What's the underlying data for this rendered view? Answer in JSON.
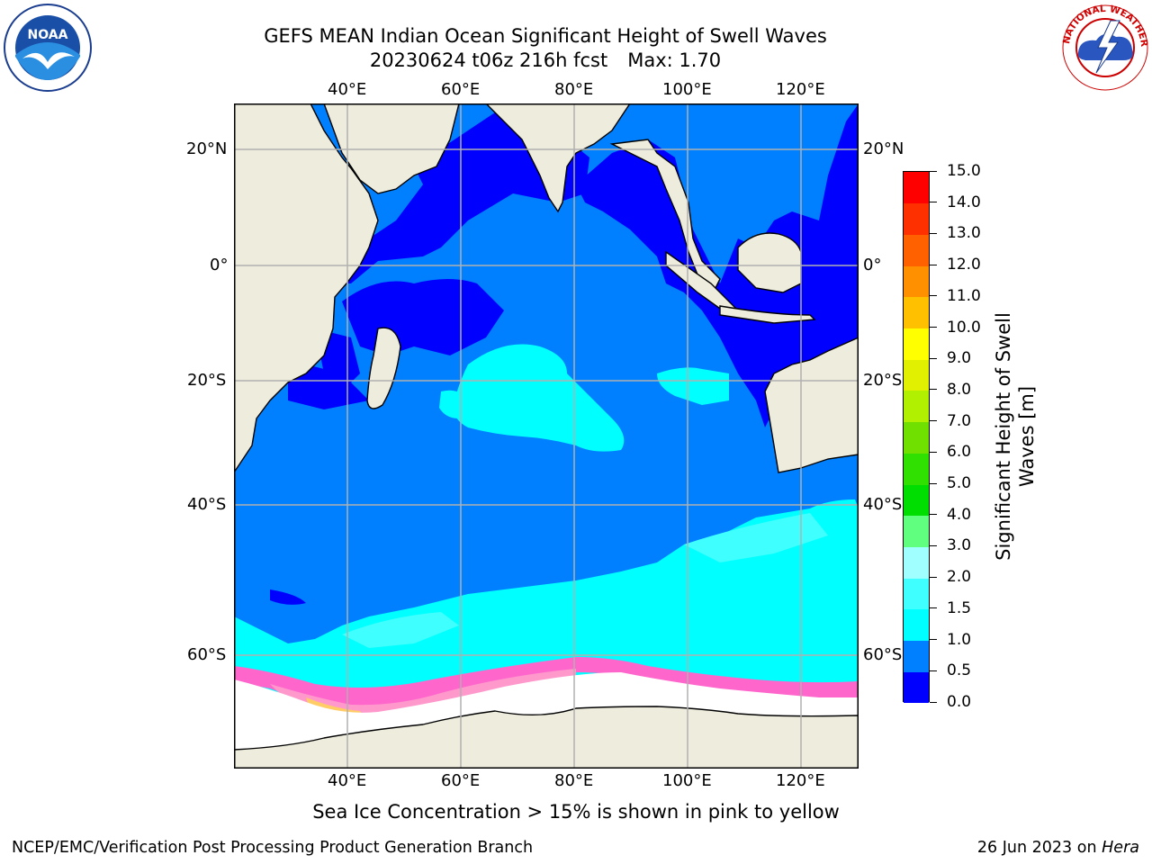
{
  "header": {
    "title_line1": "GEFS MEAN Indian Ocean Significant Height of Swell Waves",
    "title_date": "20230624 t06z 216h fcst",
    "title_max": "Max: 1.70"
  },
  "logos": {
    "left": {
      "icon": "noaa-logo",
      "text": "NOAA",
      "ring_text": "NATIONAL OCEANIC AND ATMOSPHERIC ADMINISTRATION · U.S. DEPARTMENT OF COMMERCE"
    },
    "right": {
      "icon": "national-weather-service-logo",
      "ring_text": "NATIONAL WEATHER SERVICE"
    }
  },
  "map": {
    "lon_labels": [
      "40°E",
      "60°E",
      "80°E",
      "100°E",
      "120°E"
    ],
    "lat_labels": [
      "20°N",
      "0°",
      "20°S",
      "40°S",
      "60°S"
    ],
    "gridline_color": "#b0b0b0",
    "land_color": "#eeeddd",
    "ice_color": "#ffffff"
  },
  "colorbar": {
    "title": "Significant Height of Swell Waves [m]",
    "title_line1": "Significant Height of Swell",
    "title_line2": "Waves [m]",
    "tick_labels": [
      "0.0",
      "0.5",
      "1.0",
      "1.5",
      "2.0",
      "3.0",
      "4.0",
      "5.0",
      "6.0",
      "7.0",
      "8.0",
      "9.0",
      "10.0",
      "11.0",
      "12.0",
      "13.0",
      "14.0",
      "15.0"
    ],
    "colors": [
      "#0000ff",
      "#0080ff",
      "#00ffff",
      "#40ffff",
      "#a0ffff",
      "#60ff80",
      "#00dd00",
      "#30e000",
      "#70e000",
      "#b0f000",
      "#e0f000",
      "#ffff00",
      "#ffc000",
      "#ff9000",
      "#ff6000",
      "#ff3000",
      "#ff0000"
    ]
  },
  "notes": {
    "ice_note": "Sea Ice Concentration > 15% is shown in pink to yellow"
  },
  "footer": {
    "left": "NCEP/EMC/Verification Post Processing Product Generation Branch",
    "date": "26 Jun 2023 on",
    "host": "Hera"
  }
}
